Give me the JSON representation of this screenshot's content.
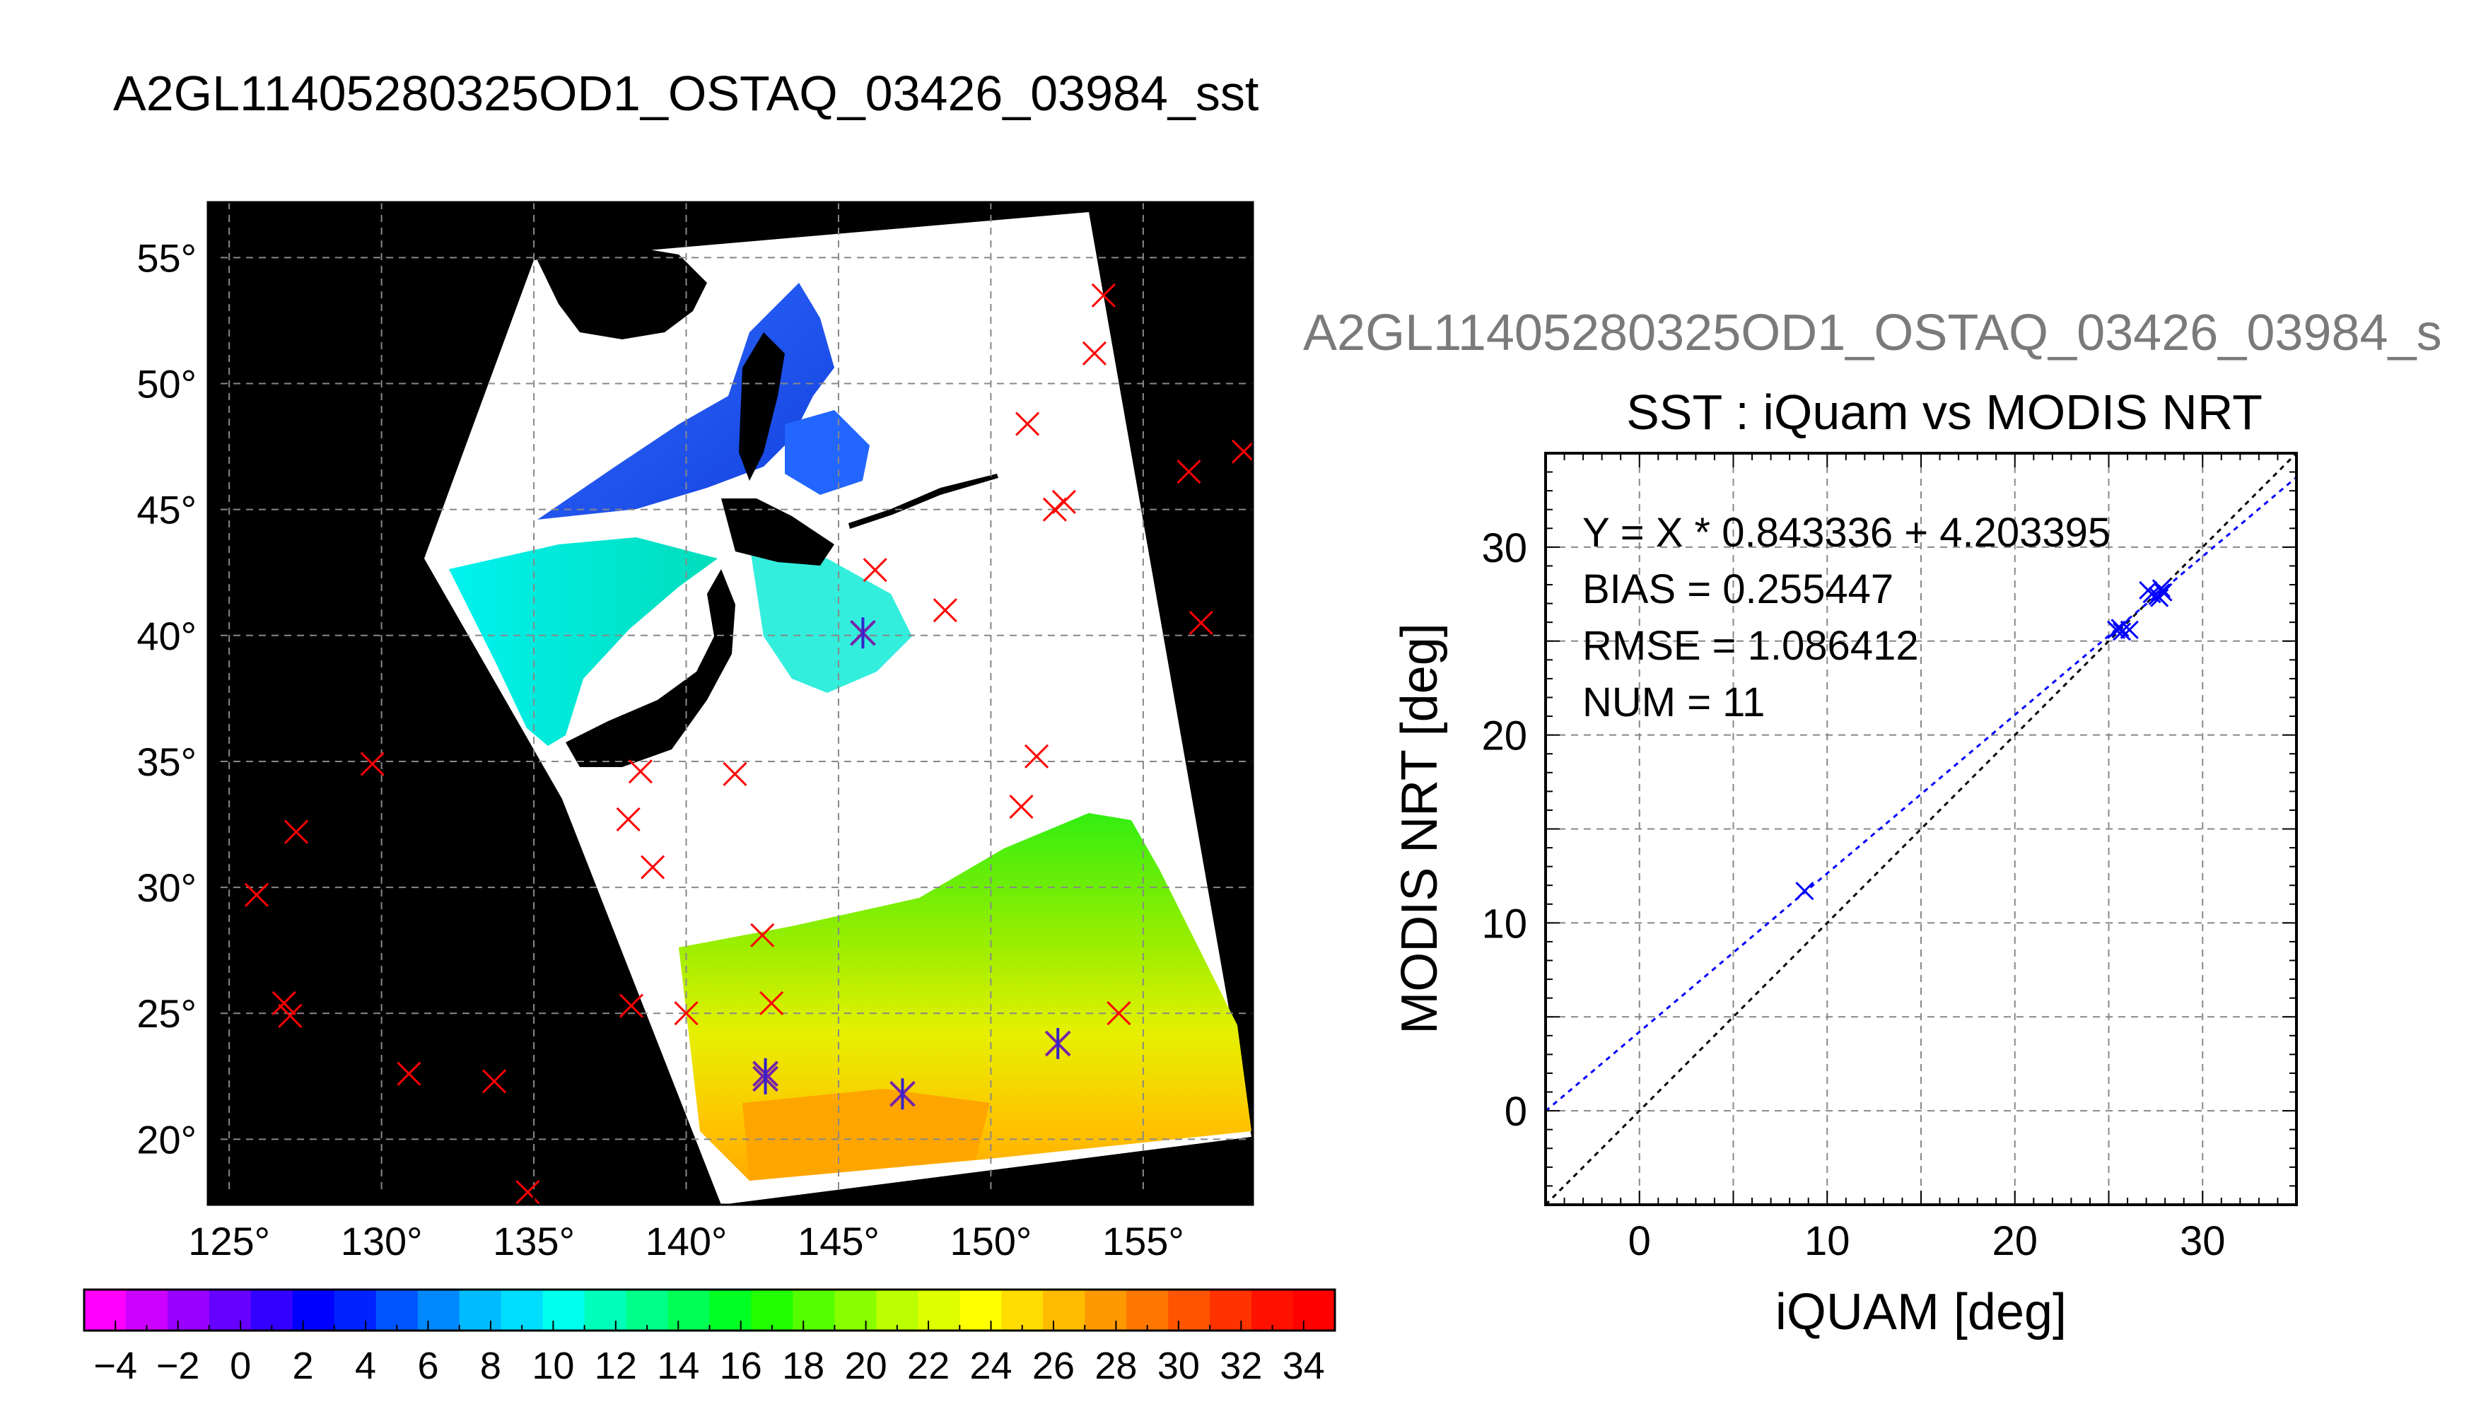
{
  "figure": {
    "main_title": "A2GL11405280325OD1_OSTAQ_03426_03984_sst",
    "scatter_header": "A2GL11405280325OD1_OSTAQ_03426_03984_s"
  },
  "chart_data": [
    {
      "type": "map",
      "title": "",
      "lon_ticks": [
        125,
        130,
        135,
        140,
        145,
        150,
        155
      ],
      "lon_tick_labels": [
        "125°",
        "130°",
        "135°",
        "140°",
        "145°",
        "150°",
        "155°"
      ],
      "lat_ticks": [
        20,
        25,
        30,
        35,
        40,
        45,
        50,
        55
      ],
      "lat_tick_labels": [
        "20°",
        "25°",
        "30°",
        "35°",
        "40°",
        "45°",
        "50°",
        "55°"
      ],
      "xlim": [
        124.3,
        158.6
      ],
      "ylim": [
        17.4,
        57.2
      ],
      "grid": true,
      "colorbar": {
        "range": [
          -5,
          35
        ],
        "tick_values": [
          -4,
          -2,
          0,
          2,
          4,
          6,
          8,
          10,
          12,
          14,
          16,
          18,
          20,
          22,
          24,
          26,
          28,
          30,
          32,
          34
        ],
        "tick_labels": [
          "−4",
          "−2",
          "0",
          "2",
          "4",
          "6",
          "8",
          "10",
          "12",
          "14",
          "16",
          "18",
          "20",
          "22",
          "24",
          "26",
          "28",
          "30",
          "32",
          "34"
        ],
        "colors": [
          "#ff00ff",
          "#cc00ff",
          "#9900ff",
          "#6600ff",
          "#3300ff",
          "#0000ff",
          "#0022ff",
          "#0055ff",
          "#0088ff",
          "#00bbff",
          "#00ddff",
          "#00ffee",
          "#00ffbb",
          "#00ff88",
          "#00ff55",
          "#00ff22",
          "#22ff00",
          "#55ff00",
          "#88ff00",
          "#bbff00",
          "#ddff00",
          "#ffff00",
          "#ffdd00",
          "#ffbb00",
          "#ff9900",
          "#ff7700",
          "#ff5500",
          "#ff3300",
          "#ff1100",
          "#ff0000"
        ]
      },
      "insitu_points_red_x": [
        [
          125.9,
          29.7
        ],
        [
          126.8,
          25.4
        ],
        [
          127.0,
          24.9
        ],
        [
          127.2,
          32.2
        ],
        [
          129.7,
          34.9
        ],
        [
          130.9,
          22.6
        ],
        [
          133.7,
          22.3
        ],
        [
          134.8,
          17.9
        ],
        [
          138.1,
          32.7
        ],
        [
          138.2,
          25.3
        ],
        [
          138.5,
          34.6
        ],
        [
          138.9,
          30.8
        ],
        [
          140.0,
          25.0
        ],
        [
          141.6,
          34.5
        ],
        [
          142.5,
          28.1
        ],
        [
          142.8,
          25.4
        ],
        [
          146.2,
          42.6
        ],
        [
          148.5,
          41.0
        ],
        [
          151.0,
          33.2
        ],
        [
          151.2,
          48.4
        ],
        [
          151.5,
          35.2
        ],
        [
          152.1,
          45.0
        ],
        [
          152.4,
          45.3
        ],
        [
          153.4,
          51.2
        ],
        [
          153.7,
          53.5
        ],
        [
          154.2,
          25.0
        ],
        [
          156.5,
          46.5
        ],
        [
          156.9,
          40.5
        ],
        [
          158.3,
          47.3
        ]
      ],
      "matchup_points_star": [
        [
          145.8,
          40.1
        ],
        [
          142.6,
          22.6
        ],
        [
          142.6,
          22.4
        ],
        [
          147.1,
          21.8
        ],
        [
          152.2,
          23.8
        ]
      ]
    },
    {
      "type": "scatter",
      "title": "SST : iQuam vs MODIS NRT",
      "xlabel": "iQUAM [deg]",
      "ylabel": "MODIS NRT [deg]",
      "xlim": [
        -5,
        35
      ],
      "ylim": [
        -5,
        35
      ],
      "xticks": [
        0,
        10,
        20,
        30
      ],
      "yticks": [
        0,
        10,
        20,
        30
      ],
      "grid": true,
      "annotations": [
        "Y = X * 0.843336 + 4.203395",
        "BIAS = 0.255447",
        "RMSE = 1.086412",
        "NUM = 11"
      ],
      "regression": {
        "slope": 0.843336,
        "intercept": 4.203395,
        "color": "#0000ff"
      },
      "identity_line_color": "#000000",
      "series": [
        {
          "marker": "x",
          "color": "#0000ff",
          "x": [
            8.8,
            25.4,
            25.6,
            25.7,
            26.1,
            27.1,
            27.3,
            27.6,
            27.7,
            27.8,
            27.9
          ],
          "y": [
            11.7,
            25.6,
            25.7,
            25.5,
            25.6,
            27.7,
            27.5,
            27.4,
            27.3,
            27.8,
            27.6
          ]
        }
      ]
    }
  ]
}
